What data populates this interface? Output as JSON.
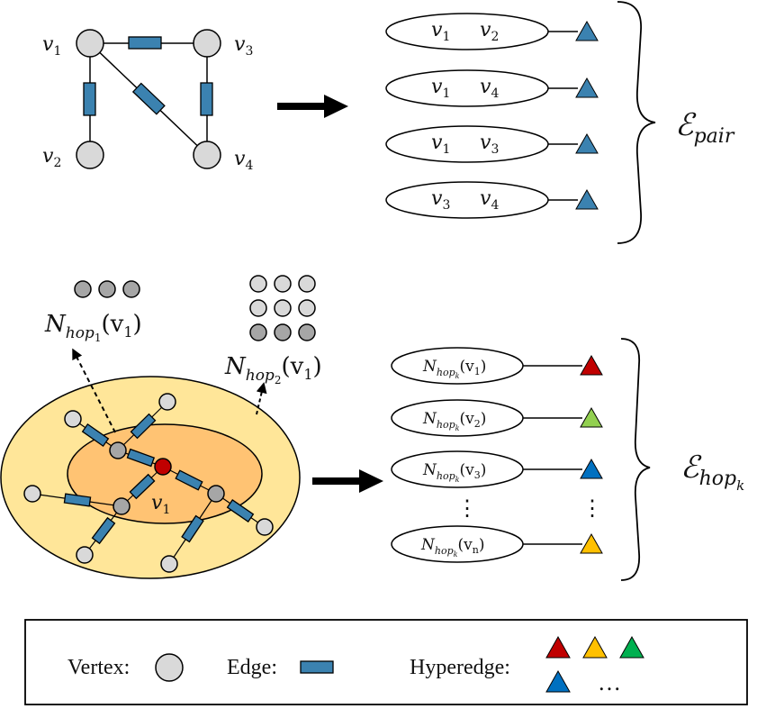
{
  "graph": {
    "vertices": [
      {
        "id": "v1",
        "base": "v",
        "sub": "1"
      },
      {
        "id": "v2",
        "base": "v",
        "sub": "2"
      },
      {
        "id": "v3",
        "base": "v",
        "sub": "3"
      },
      {
        "id": "v4",
        "base": "v",
        "sub": "4"
      }
    ]
  },
  "pairs": [
    {
      "a_sub": "1",
      "b_sub": "2"
    },
    {
      "a_sub": "1",
      "b_sub": "4"
    },
    {
      "a_sub": "1",
      "b_sub": "3"
    },
    {
      "a_sub": "3",
      "b_sub": "4"
    }
  ],
  "var_base": "v",
  "e_pair": {
    "symbol": "ℰ",
    "sub": "pair"
  },
  "hop_labels": {
    "hop1": {
      "N": "N",
      "sub": "hop",
      "subsub": "1",
      "arg": "(v",
      "argsub": "1",
      "close": ")"
    },
    "hop2": {
      "N": "N",
      "sub": "hop",
      "subsub": "2",
      "arg": "(v",
      "argsub": "1",
      "close": ")"
    }
  },
  "center_label": {
    "base": "v",
    "sub": "1"
  },
  "hop_rows": [
    {
      "argsub": "1",
      "color": "#c00000"
    },
    {
      "argsub": "2",
      "color": "#92d050"
    },
    {
      "argsub": "3",
      "color": "#0070c0"
    },
    {
      "argsub": "n",
      "color": "#ffc000"
    }
  ],
  "hop_row_text": {
    "N": "N",
    "sub": "hop",
    "subsub": "k",
    "arg": "(v",
    "close": ")"
  },
  "ellipsis_vertical": "⋮",
  "e_hop": {
    "symbol": "ℰ",
    "sub": "hop",
    "subsub": "k"
  },
  "legend": {
    "vertex_label": "Vertex:",
    "edge_label": "Edge:",
    "hyperedge_label": "Hyperedge:",
    "more": "…",
    "hyperedge_colors": [
      "#c00000",
      "#ffc000",
      "#00b050",
      "#0070c0"
    ]
  },
  "colors": {
    "vertex_fill": "#d9d9d9",
    "vertex_dark": "#a6a6a6",
    "center_vertex": "#c00000",
    "edge_fill": "#3b82b0",
    "hyperedge_blue": "#3b82b0",
    "outer_region": "#ffe699",
    "inner_region": "#ffc373"
  }
}
